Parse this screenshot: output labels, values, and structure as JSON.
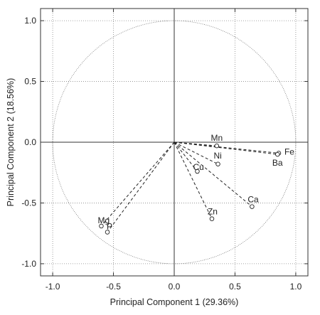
{
  "chart_data": {
    "type": "scatter",
    "subtype": "pca-correlation-circle",
    "title": "",
    "xlabel": "Principal Component 1 (29.36%)",
    "ylabel": "Principal Component 2 (18.56%)",
    "xlim": [
      -1.1,
      1.1
    ],
    "ylim": [
      -1.1,
      1.1
    ],
    "xticks": [
      "-1.0",
      "-0.5",
      "0.0",
      "0.5",
      "1.0"
    ],
    "yticks": [
      "1.0",
      "0.5",
      "0.0",
      "-0.5",
      "-1.0"
    ],
    "grid": true,
    "unit_circle": true,
    "points": [
      {
        "label": "Mn",
        "x": 0.35,
        "y": -0.03
      },
      {
        "label": "Fe",
        "x": 0.86,
        "y": -0.09
      },
      {
        "label": "Ba",
        "x": 0.85,
        "y": -0.1
      },
      {
        "label": "Ni",
        "x": 0.36,
        "y": -0.18
      },
      {
        "label": "Cu",
        "x": 0.19,
        "y": -0.24
      },
      {
        "label": "Ca",
        "x": 0.64,
        "y": -0.53
      },
      {
        "label": "Zn",
        "x": 0.31,
        "y": -0.63
      },
      {
        "label": "Mg",
        "x": -0.6,
        "y": -0.69
      },
      {
        "label": "P",
        "x": -0.55,
        "y": -0.74
      }
    ]
  }
}
